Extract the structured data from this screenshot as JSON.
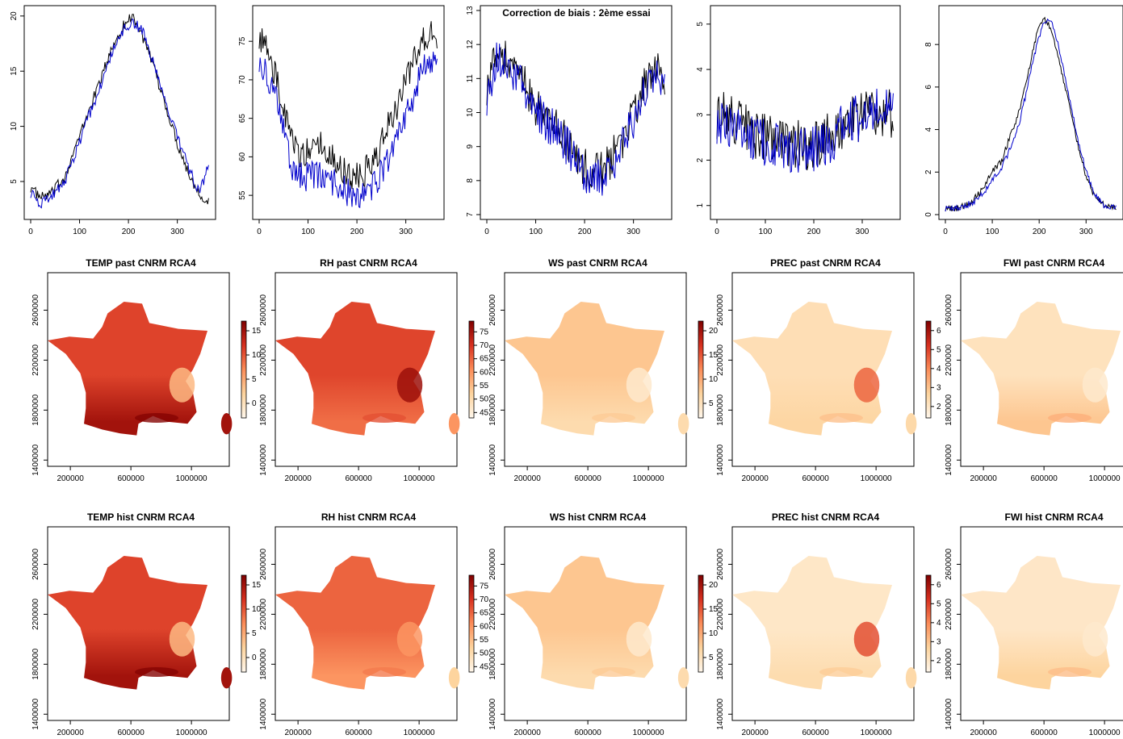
{
  "figure_title": "Correction de biais : 2ème essai",
  "colors": {
    "series_black": "#000000",
    "series_blue": "#0000cc",
    "map_ramp": [
      "#fff7ec",
      "#fdd49e",
      "#fc8d59",
      "#d7301f",
      "#7f0000"
    ]
  },
  "chart_data": [
    {
      "type": "line",
      "variable": "TEMP",
      "xlim": [
        0,
        365
      ],
      "ylim": [
        2,
        20.5
      ],
      "x_ticks": [
        0,
        100,
        200,
        300
      ],
      "y_ticks": [
        5,
        10,
        15,
        20
      ],
      "series": [
        {
          "color": "black",
          "x": [
            0,
            20,
            45,
            70,
            95,
            120,
            145,
            170,
            195,
            210,
            230,
            250,
            275,
            300,
            325,
            345,
            365
          ],
          "y": [
            4.5,
            3.5,
            4.0,
            5.5,
            8.5,
            11.5,
            14.5,
            17.5,
            19.5,
            20.0,
            18.0,
            15.5,
            12.0,
            8.5,
            5.5,
            4.0,
            3.0
          ]
        },
        {
          "color": "blue",
          "x": [
            0,
            20,
            45,
            70,
            95,
            120,
            145,
            170,
            195,
            210,
            230,
            250,
            275,
            300,
            325,
            345,
            365
          ],
          "y": [
            4.0,
            3.0,
            3.8,
            5.0,
            8.0,
            11.0,
            14.0,
            17.0,
            19.0,
            19.5,
            18.5,
            16.0,
            12.5,
            9.0,
            6.0,
            4.0,
            6.5
          ]
        }
      ]
    },
    {
      "type": "line",
      "variable": "RH",
      "xlim": [
        0,
        365
      ],
      "ylim": [
        52.5,
        79
      ],
      "x_ticks": [
        0,
        100,
        200,
        300
      ],
      "y_ticks": [
        55,
        60,
        65,
        70,
        75
      ],
      "series": [
        {
          "color": "black",
          "x": [
            0,
            15,
            40,
            65,
            90,
            115,
            140,
            165,
            190,
            215,
            240,
            265,
            290,
            315,
            340,
            365
          ],
          "y": [
            76,
            74,
            69,
            62,
            60,
            62,
            61,
            59,
            57,
            58,
            60,
            64,
            68,
            72,
            76,
            76
          ]
        },
        {
          "color": "blue",
          "x": [
            0,
            15,
            40,
            65,
            90,
            115,
            140,
            165,
            190,
            215,
            240,
            265,
            290,
            315,
            340,
            365
          ],
          "y": [
            73,
            71,
            66,
            59,
            57,
            58,
            57,
            56,
            55,
            55,
            57,
            60,
            64,
            68,
            72,
            72
          ]
        }
      ]
    },
    {
      "type": "line",
      "variable": "WS",
      "xlim": [
        0,
        365
      ],
      "ylim": [
        7,
        13
      ],
      "x_ticks": [
        0,
        100,
        200,
        300
      ],
      "y_ticks": [
        7,
        8,
        9,
        10,
        11,
        12,
        13
      ],
      "series": [
        {
          "color": "black",
          "x": [
            0,
            20,
            45,
            70,
            95,
            120,
            145,
            170,
            195,
            220,
            245,
            270,
            295,
            320,
            345,
            365
          ],
          "y": [
            10.8,
            11.6,
            11.5,
            11.0,
            10.3,
            9.8,
            9.5,
            9.0,
            8.5,
            8.2,
            8.4,
            9.0,
            9.8,
            10.7,
            11.2,
            11.0
          ]
        },
        {
          "color": "blue",
          "x": [
            0,
            20,
            45,
            70,
            95,
            120,
            145,
            170,
            195,
            220,
            245,
            270,
            295,
            320,
            345,
            365
          ],
          "y": [
            10.5,
            11.5,
            11.4,
            10.9,
            10.2,
            9.7,
            9.4,
            8.9,
            8.3,
            8.0,
            8.2,
            8.8,
            9.6,
            10.5,
            11.0,
            10.8
          ]
        }
      ]
    },
    {
      "type": "line",
      "variable": "PREC",
      "xlim": [
        0,
        365
      ],
      "ylim": [
        0.8,
        5.3
      ],
      "x_ticks": [
        0,
        100,
        200,
        300
      ],
      "y_ticks": [
        1,
        2,
        3,
        4,
        5
      ],
      "series": [
        {
          "color": "black",
          "x": [
            0,
            30,
            60,
            90,
            120,
            150,
            180,
            210,
            240,
            270,
            300,
            330,
            365
          ],
          "y": [
            3.0,
            2.9,
            2.7,
            2.5,
            2.4,
            2.4,
            2.3,
            2.4,
            2.6,
            2.8,
            3.0,
            3.1,
            3.0
          ]
        },
        {
          "color": "blue",
          "x": [
            0,
            30,
            60,
            90,
            120,
            150,
            180,
            210,
            240,
            270,
            300,
            330,
            365
          ],
          "y": [
            2.9,
            2.8,
            2.6,
            2.4,
            2.3,
            2.2,
            2.2,
            2.3,
            2.5,
            2.8,
            3.0,
            3.2,
            3.1
          ]
        }
      ]
    },
    {
      "type": "line",
      "variable": "FWI",
      "xlim": [
        0,
        365
      ],
      "ylim": [
        0,
        9.6
      ],
      "x_ticks": [
        0,
        100,
        200,
        300
      ],
      "y_ticks": [
        0,
        2,
        4,
        6,
        8
      ],
      "series": [
        {
          "color": "black",
          "x": [
            0,
            20,
            40,
            60,
            80,
            100,
            120,
            140,
            160,
            180,
            195,
            210,
            225,
            240,
            260,
            280,
            300,
            320,
            340,
            365
          ],
          "y": [
            0.3,
            0.3,
            0.4,
            0.7,
            1.2,
            2.0,
            2.5,
            3.8,
            5.0,
            7.0,
            8.5,
            9.2,
            8.8,
            7.5,
            5.5,
            3.5,
            1.8,
            0.8,
            0.4,
            0.3
          ]
        },
        {
          "color": "blue",
          "x": [
            0,
            20,
            40,
            60,
            80,
            100,
            120,
            140,
            160,
            180,
            195,
            210,
            225,
            240,
            260,
            280,
            300,
            320,
            340,
            365
          ],
          "y": [
            0.3,
            0.3,
            0.4,
            0.6,
            1.0,
            1.6,
            2.2,
            3.2,
            4.5,
            6.5,
            8.0,
            9.0,
            9.2,
            8.0,
            6.0,
            3.8,
            2.0,
            0.9,
            0.4,
            0.3
          ]
        }
      ]
    },
    {
      "type": "heatmap",
      "variable": "TEMP",
      "title": "TEMP past CNRM RCA4",
      "x_ticks": [
        200000,
        600000,
        1000000
      ],
      "y_ticks": [
        1400000,
        1800000,
        2200000,
        2600000
      ],
      "legend_ticks": [
        0,
        5,
        10,
        15
      ],
      "legend_range": [
        -3,
        17
      ],
      "region_values": {
        "north": 11,
        "south": 15,
        "alps": 4,
        "corsica": 15
      }
    },
    {
      "type": "heatmap",
      "variable": "RH",
      "title": "RH past CNRM RCA4",
      "x_ticks": [
        200000,
        600000,
        1000000
      ],
      "y_ticks": [
        1400000,
        1800000,
        2200000,
        2600000
      ],
      "legend_ticks": [
        45,
        50,
        55,
        60,
        65,
        70,
        75
      ],
      "legend_range": [
        43,
        79
      ],
      "region_values": {
        "north": 68,
        "south": 64,
        "alps": 76,
        "corsica": 60
      }
    },
    {
      "type": "heatmap",
      "variable": "WS",
      "title": "WS past CNRM RCA4",
      "x_ticks": [
        200000,
        600000,
        1000000
      ],
      "y_ticks": [
        1400000,
        1800000,
        2200000,
        2600000
      ],
      "legend_ticks": [
        5,
        10,
        15,
        20
      ],
      "legend_range": [
        2,
        22
      ],
      "region_values": {
        "north": 8,
        "south": 6,
        "alps": 4,
        "corsica": 6
      }
    },
    {
      "type": "heatmap",
      "variable": "PREC",
      "title": "PREC past CNRM RCA4",
      "x_ticks": [
        200000,
        600000,
        1000000
      ],
      "y_ticks": [
        1400000,
        1800000,
        2200000,
        2600000
      ],
      "legend_ticks": [
        2,
        3,
        4,
        5,
        6
      ],
      "legend_range": [
        1.4,
        6.5
      ],
      "region_values": {
        "north": 2.3,
        "south": 2.6,
        "alps": 4.5,
        "corsica": 2.5
      }
    },
    {
      "type": "heatmap",
      "variable": "FWI",
      "title": "FWI past CNRM RCA4",
      "x_ticks": [
        200000,
        600000,
        1000000
      ],
      "y_ticks": [
        1400000,
        1800000,
        2200000,
        2600000
      ],
      "legend_ticks": [],
      "legend_range": [
        0,
        10
      ],
      "region_values": {
        "north": 1.5,
        "south": 3,
        "alps": 1,
        "corsica": 4
      }
    },
    {
      "type": "heatmap",
      "variable": "TEMP",
      "title": "TEMP hist CNRM RCA4",
      "x_ticks": [
        200000,
        600000,
        1000000
      ],
      "y_ticks": [
        1400000,
        1800000,
        2200000,
        2600000
      ],
      "legend_ticks": [
        0,
        5,
        10,
        15
      ],
      "legend_range": [
        -3,
        17
      ],
      "region_values": {
        "north": 11,
        "south": 15,
        "alps": 4,
        "corsica": 15
      }
    },
    {
      "type": "heatmap",
      "variable": "RH",
      "title": "RH hist CNRM RCA4",
      "x_ticks": [
        200000,
        600000,
        1000000
      ],
      "y_ticks": [
        1400000,
        1800000,
        2200000,
        2600000
      ],
      "legend_ticks": [
        45,
        50,
        55,
        60,
        65,
        70,
        75
      ],
      "legend_range": [
        43,
        79
      ],
      "region_values": {
        "north": 65,
        "south": 60,
        "alps": 60,
        "corsica": 52
      }
    },
    {
      "type": "heatmap",
      "variable": "WS",
      "title": "WS hist CNRM RCA4",
      "x_ticks": [
        200000,
        600000,
        1000000
      ],
      "y_ticks": [
        1400000,
        1800000,
        2200000,
        2600000
      ],
      "legend_ticks": [
        5,
        10,
        15,
        20
      ],
      "legend_range": [
        2,
        22
      ],
      "region_values": {
        "north": 8,
        "south": 6,
        "alps": 4,
        "corsica": 6
      }
    },
    {
      "type": "heatmap",
      "variable": "PREC",
      "title": "PREC hist CNRM RCA4",
      "x_ticks": [
        200000,
        600000,
        1000000
      ],
      "y_ticks": [
        1400000,
        1800000,
        2200000,
        2600000
      ],
      "legend_ticks": [
        2,
        3,
        4,
        5,
        6
      ],
      "legend_range": [
        1.4,
        6.5
      ],
      "region_values": {
        "north": 2.0,
        "south": 2.4,
        "alps": 4.8,
        "corsica": 2.5
      }
    },
    {
      "type": "heatmap",
      "variable": "FWI",
      "title": "FWI hist CNRM RCA4",
      "x_ticks": [
        200000,
        600000,
        1000000
      ],
      "y_ticks": [
        1400000,
        1800000,
        2200000,
        2600000
      ],
      "legend_ticks": [],
      "legend_range": [
        0,
        10
      ],
      "region_values": {
        "north": 1.2,
        "south": 2.5,
        "alps": 1,
        "corsica": 3
      }
    }
  ]
}
